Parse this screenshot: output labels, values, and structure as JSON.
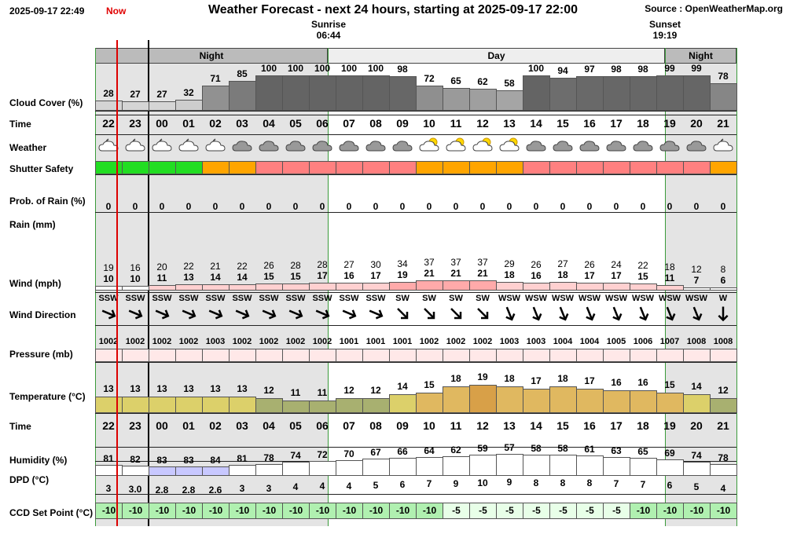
{
  "header": {
    "timestamp": "2025-09-17 22:49",
    "now_label": "Now",
    "title": "Weather Forecast - next 24 hours, starting at 2025-09-17 22:00",
    "source": "Source : OpenWeatherMap.org",
    "sunrise_label": "Sunrise",
    "sunrise_time": "06:44",
    "sunset_label": "Sunset",
    "sunset_time": "19:19"
  },
  "periods": [
    {
      "label": "Night"
    },
    {
      "label": "Day"
    },
    {
      "label": "Night"
    }
  ],
  "labels": {
    "cloud": "Cloud Cover (%)",
    "time": "Time",
    "weather": "Weather",
    "shutter": "Shutter Safety",
    "rainprob": "Prob. of Rain (%)",
    "rain": "Rain (mm)",
    "wind": "Wind (mph)",
    "winddir": "Wind Direction",
    "pressure": "Pressure (mb)",
    "temp": "Temperature (°C)",
    "time2": "Time",
    "humidity": "Humidity (%)",
    "dpd": "DPD (°C)",
    "ccd": "CCD Set Point (°C)"
  },
  "colors": {
    "night_bg": "#e4e4e4",
    "day_bg": "#ffffff",
    "shutter_green": "#22dd22",
    "shutter_orange": "#ffa500",
    "shutter_red": "#ff8080",
    "now_line": "#dd0000"
  },
  "hours": [
    "22",
    "23",
    "00",
    "01",
    "02",
    "03",
    "04",
    "05",
    "06",
    "07",
    "08",
    "09",
    "10",
    "11",
    "12",
    "13",
    "14",
    "15",
    "16",
    "17",
    "18",
    "19",
    "20",
    "21"
  ],
  "cloud_cover": [
    28,
    27,
    27,
    32,
    71,
    85,
    100,
    100,
    100,
    100,
    100,
    98,
    72,
    65,
    62,
    58,
    100,
    94,
    97,
    98,
    98,
    99,
    99,
    78
  ],
  "weather_icons": [
    "partly-cloudy-night",
    "partly-cloudy-night",
    "partly-cloudy-night",
    "partly-cloudy-night",
    "partly-cloudy-night",
    "cloud",
    "cloud",
    "cloud",
    "cloud",
    "cloud",
    "cloud",
    "cloud",
    "partly-cloudy-day",
    "partly-cloudy-day",
    "partly-cloudy-day",
    "partly-cloudy-day",
    "cloud",
    "cloud",
    "cloud",
    "cloud",
    "cloud",
    "cloud",
    "cloud",
    "partly-cloudy-night"
  ],
  "shutter_safety": [
    "green",
    "green",
    "green",
    "green",
    "orange",
    "orange",
    "red",
    "red",
    "red",
    "red",
    "red",
    "red",
    "orange",
    "orange",
    "orange",
    "orange",
    "red",
    "red",
    "red",
    "red",
    "red",
    "red",
    "red",
    "orange"
  ],
  "rain_prob": [
    0,
    0,
    0,
    0,
    0,
    0,
    0,
    0,
    0,
    0,
    0,
    0,
    0,
    0,
    0,
    0,
    0,
    0,
    0,
    0,
    0,
    0,
    0,
    0
  ],
  "wind_gust": [
    19,
    16,
    20,
    22,
    21,
    22,
    26,
    28,
    28,
    27,
    30,
    34,
    37,
    37,
    37,
    29,
    26,
    27,
    26,
    24,
    22,
    18,
    12,
    8
  ],
  "wind_speed": [
    10,
    10,
    11,
    13,
    14,
    14,
    15,
    15,
    17,
    16,
    17,
    19,
    21,
    21,
    21,
    18,
    16,
    18,
    17,
    17,
    15,
    11,
    7,
    6
  ],
  "wind_dir": [
    "SSW",
    "SSW",
    "SSW",
    "SSW",
    "SSW",
    "SSW",
    "SSW",
    "SSW",
    "SSW",
    "SSW",
    "SSW",
    "SW",
    "SW",
    "SW",
    "SW",
    "WSW",
    "WSW",
    "WSW",
    "WSW",
    "WSW",
    "WSW",
    "WSW",
    "WSW",
    "W"
  ],
  "wind_angle": [
    203,
    203,
    203,
    203,
    203,
    203,
    203,
    203,
    203,
    203,
    203,
    225,
    225,
    225,
    225,
    248,
    248,
    248,
    248,
    248,
    248,
    248,
    248,
    270
  ],
  "pressure": [
    1002,
    1002,
    1002,
    1002,
    1003,
    1002,
    1002,
    1002,
    1002,
    1001,
    1001,
    1001,
    1002,
    1002,
    1002,
    1003,
    1003,
    1004,
    1004,
    1005,
    1006,
    1007,
    1008,
    1008
  ],
  "temperature": [
    13,
    13,
    13,
    13,
    13,
    13,
    12,
    11,
    11,
    12,
    12,
    14,
    15,
    18,
    19,
    18,
    17,
    18,
    17,
    16,
    16,
    15,
    14,
    12
  ],
  "humidity": [
    81,
    82,
    83,
    83,
    84,
    81,
    78,
    74,
    72,
    70,
    67,
    66,
    64,
    62,
    59,
    57,
    58,
    58,
    61,
    63,
    65,
    69,
    74,
    78
  ],
  "dpd": [
    "3",
    "3.0",
    "2.8",
    "2.8",
    "2.6",
    "3",
    "3",
    "4",
    "4",
    "4",
    "5",
    "6",
    "7",
    "9",
    "10",
    "9",
    "8",
    "8",
    "8",
    "7",
    "7",
    "6",
    "5",
    "4"
  ],
  "ccd_setpoint": [
    -10,
    -10,
    -10,
    -10,
    -10,
    -10,
    -10,
    -10,
    -10,
    -10,
    -10,
    -10,
    -10,
    -5,
    -5,
    -5,
    -5,
    -5,
    -5,
    -5,
    -10,
    -10,
    -10,
    -10
  ]
}
